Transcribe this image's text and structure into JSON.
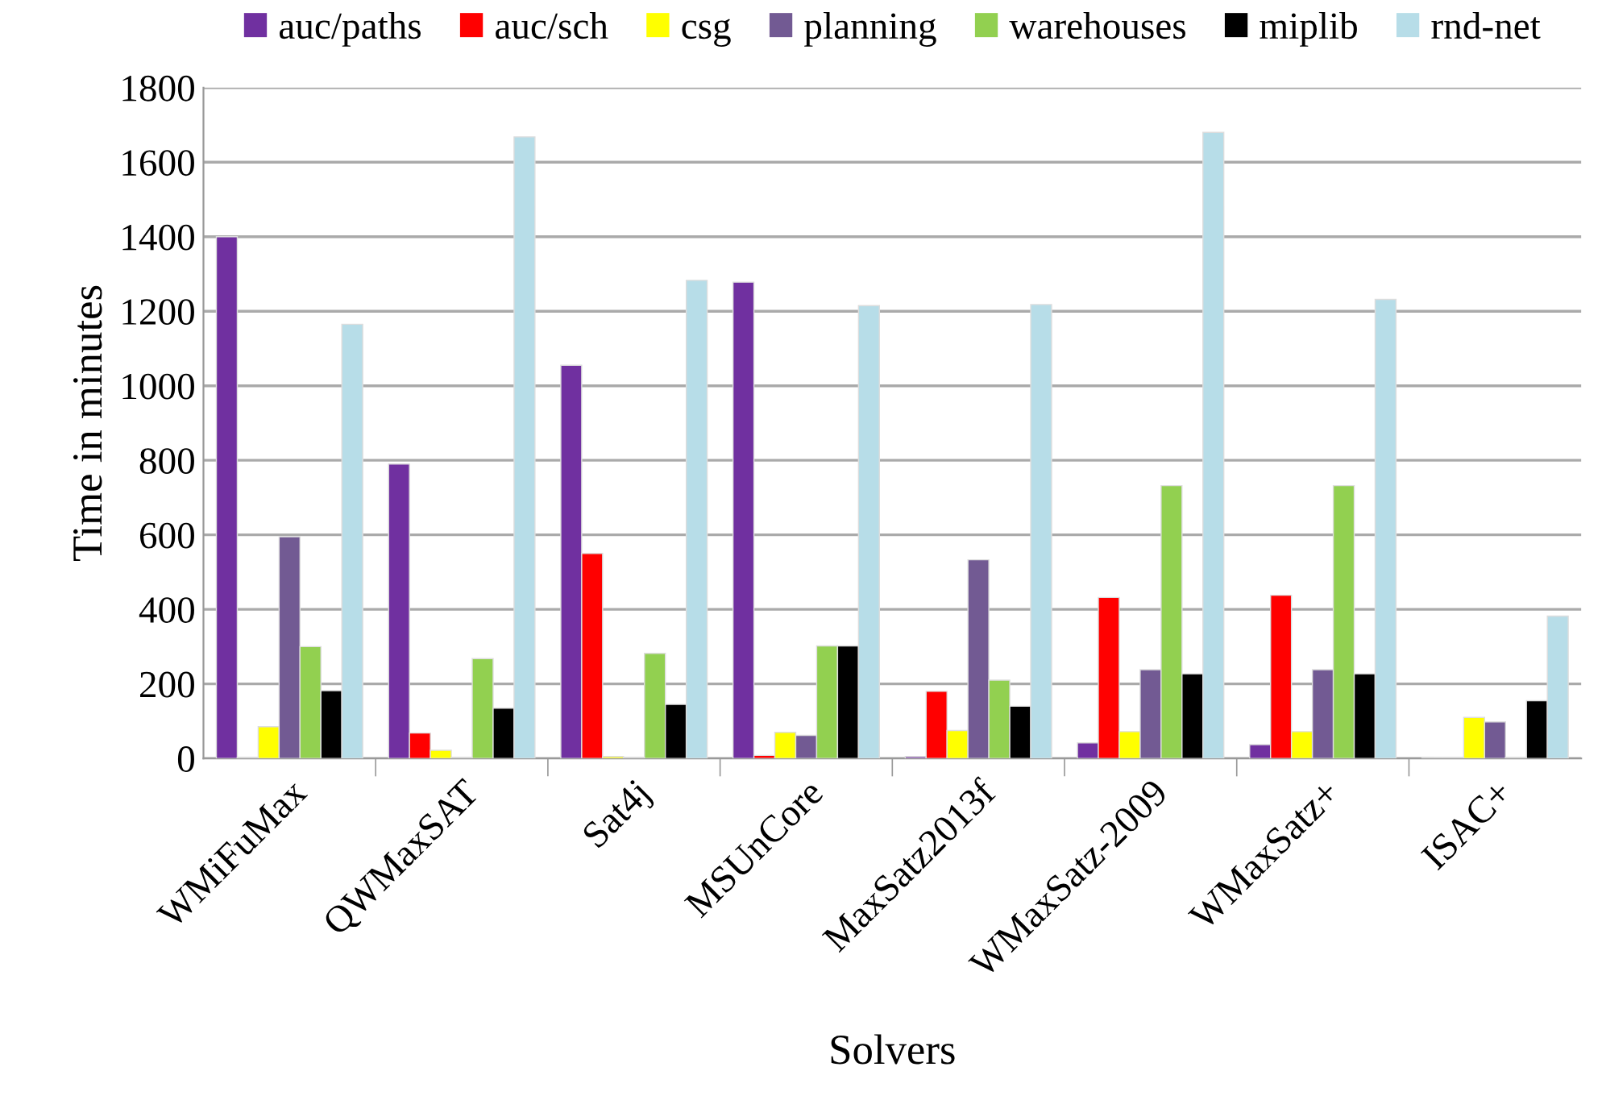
{
  "chart_data": {
    "type": "bar",
    "xlabel": "Solvers",
    "ylabel": "Time in minutes",
    "categories": [
      "WMiFuMax",
      "QWMaxSAT",
      "Sat4j",
      "MSUnCore",
      "MaxSatz2013f",
      "WMaxSatz-2009",
      "WMaxSatz+",
      "ISAC+"
    ],
    "series": [
      {
        "name": "auc/paths",
        "color": "#7030a0",
        "values": [
          1400,
          790,
          1055,
          1278,
          5,
          42,
          37,
          2
        ]
      },
      {
        "name": "auc/sch",
        "color": "#ff0000",
        "values": [
          2,
          68,
          550,
          8,
          180,
          432,
          438,
          2
        ]
      },
      {
        "name": "csg",
        "color": "#ffff00",
        "values": [
          85,
          22,
          5,
          70,
          75,
          72,
          72,
          110
        ]
      },
      {
        "name": "planning",
        "color": "#725a93",
        "values": [
          595,
          2,
          2,
          62,
          533,
          238,
          238,
          98
        ]
      },
      {
        "name": "warehouses",
        "color": "#92d050",
        "values": [
          300,
          268,
          282,
          302,
          210,
          732,
          732,
          2
        ]
      },
      {
        "name": "miplib",
        "color": "#000000",
        "values": [
          182,
          135,
          145,
          302,
          140,
          227,
          227,
          155
        ]
      },
      {
        "name": "rnd-net",
        "color": "#b7dde8",
        "values": [
          1165,
          1668,
          1283,
          1215,
          1218,
          1680,
          1232,
          382
        ]
      }
    ],
    "ylim": [
      0,
      1800
    ],
    "yticks": [
      0,
      200,
      400,
      600,
      800,
      1000,
      1200,
      1400,
      1600,
      1800
    ],
    "grid": "y",
    "legend": "top"
  }
}
